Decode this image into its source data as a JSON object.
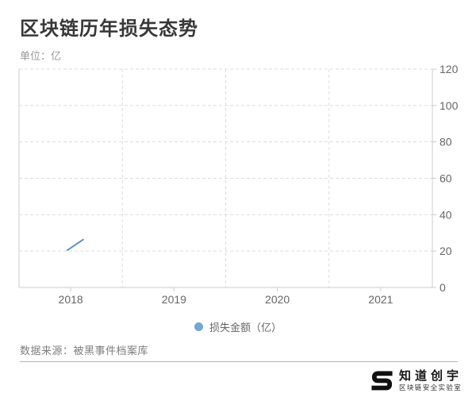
{
  "header": {
    "title": "区块链历年损失态势",
    "unit_label": "单位：亿"
  },
  "chart_data": {
    "type": "line",
    "title": "区块链历年损失态势",
    "ylabel": "亿",
    "categories": [
      "2018",
      "2019",
      "2020",
      "2021"
    ],
    "yticks": [
      0,
      20,
      40,
      60,
      80,
      100,
      120
    ],
    "ylim": [
      0,
      120
    ],
    "grid": "dashed horizontal gridlines at every 20; dashed vertical split lines at category boundaries",
    "legend_position": "bottom-center",
    "y_axis_position": "right",
    "series": [
      {
        "name": "损失金额（亿）",
        "line_color": "#5d90c4",
        "marker_color": "#74a6d6",
        "render_note": "line only partially drawn near 2018",
        "visible_segment": {
          "from": {
            "x_frac": 0.117,
            "value": 20.5
          },
          "to": {
            "x_frac": 0.155,
            "value": 26.3
          }
        }
      }
    ]
  },
  "legend": {
    "label": "损失金额（亿）"
  },
  "footer": {
    "source": "数据来源：被黑事件档案库"
  },
  "logo": {
    "brand": "知道创宇",
    "subtitle": "区块链安全实验室",
    "icon": "knownsec-s-logo"
  },
  "colors": {
    "axis_line": "#cccccc",
    "grid_line": "#dddddd",
    "tick_label": "#666666",
    "title_text": "#383838",
    "unit_text": "#999999",
    "source_text": "#7d7d7d",
    "divider": "#b3b3b3"
  }
}
